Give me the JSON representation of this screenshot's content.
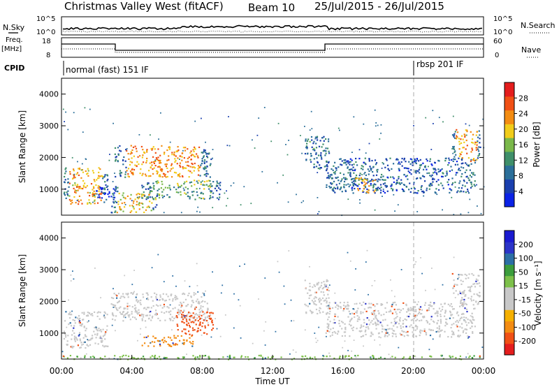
{
  "header": {
    "station": "Christmas Valley West (fitACF)",
    "beam": "Beam 10",
    "dates": "25/Jul/2015 - 26/Jul/2015"
  },
  "strip_labels": {
    "nsky": "N.Sky",
    "nsearch": "N.Search",
    "freq": "Freq.",
    "freq_unit": "[MHz]",
    "nave": "Nave",
    "cpid": "CPID",
    "nsky_ticks": [
      "10^5",
      "10^0"
    ],
    "nsearch_ticks": [
      "10^5",
      "10^0"
    ],
    "freq_ticks": [
      "18",
      "8"
    ],
    "nave_ticks": [
      "60",
      "0"
    ],
    "cpid_mode1": "normal (fast) 151 IF",
    "cpid_mode2": "rbsp 201 IF"
  },
  "colors": {
    "power": [
      "#0a22e6",
      "#1a3fae",
      "#2b6f9a",
      "#3f8f6a",
      "#7ab84a",
      "#f1cc1a",
      "#f38c12",
      "#f05015",
      "#e41d1d"
    ],
    "velocity": [
      "#e41d1d",
      "#f05015",
      "#f38c12",
      "#f5b000",
      "#c8c8c8",
      "#c8c8c8",
      "#7dc04a",
      "#3c9d3c",
      "#2c6fa5",
      "#2b34c8",
      "#1a1ad0"
    ]
  },
  "chart_data": [
    {
      "type": "heatmap",
      "name": "power-panel",
      "xlabel": "Time UT",
      "ylabel": "Slant Range [km]",
      "xlim": [
        0,
        24
      ],
      "ylim": [
        180,
        4500
      ],
      "yticks": [
        "1000",
        "2000",
        "3000",
        "4000"
      ],
      "xticks": [
        "00:00",
        "04:00",
        "08:00",
        "12:00",
        "16:00",
        "20:00",
        "00:00"
      ],
      "colorbar_label": "Power [dB]",
      "colorbar_ticks": [
        "4",
        "8",
        "12",
        "16",
        "20",
        "24",
        "28"
      ],
      "regions": [
        {
          "t0": 0.1,
          "t1": 2.6,
          "r0": 550,
          "r1": 1700,
          "level": 26
        },
        {
          "t0": 1.8,
          "t1": 3.2,
          "r0": 700,
          "r1": 1100,
          "level": 6
        },
        {
          "t0": 2.8,
          "t1": 5.5,
          "r0": 280,
          "r1": 900,
          "level": 24
        },
        {
          "t0": 3.0,
          "t1": 8.5,
          "r0": 1400,
          "r1": 2400,
          "level": 27
        },
        {
          "t0": 4.5,
          "t1": 9.0,
          "r0": 700,
          "r1": 1300,
          "level": 18
        },
        {
          "t0": 13.8,
          "t1": 15.2,
          "r0": 1600,
          "r1": 2700,
          "level": 14
        },
        {
          "t0": 15.0,
          "t1": 23.5,
          "r0": 900,
          "r1": 2000,
          "level": 12
        },
        {
          "t0": 16.5,
          "t1": 18.0,
          "r0": 900,
          "r1": 1400,
          "level": 24
        },
        {
          "t0": 22.2,
          "t1": 23.8,
          "r0": 1900,
          "r1": 2900,
          "level": 27
        }
      ]
    },
    {
      "type": "heatmap",
      "name": "velocity-panel",
      "xlabel": "Time UT",
      "ylabel": "Slant Range [km]",
      "xlim": [
        0,
        24
      ],
      "ylim": [
        180,
        4500
      ],
      "yticks": [
        "1000",
        "2000",
        "3000",
        "4000"
      ],
      "xticks": [
        "00:00",
        "04:00",
        "08:00",
        "12:00",
        "16:00",
        "20:00",
        "00:00"
      ],
      "colorbar_label": "Velocity [m s⁻¹]",
      "colorbar_ticks": [
        "200",
        "100",
        "50",
        "15",
        "-15",
        "-50",
        "-100",
        "-200"
      ],
      "regions": [
        {
          "t0": 0.1,
          "t1": 2.6,
          "r0": 550,
          "r1": 1700,
          "level": 0
        },
        {
          "t0": 2.8,
          "t1": 8.5,
          "r0": 1400,
          "r1": 2300,
          "level": 0
        },
        {
          "t0": 4.5,
          "t1": 7.5,
          "r0": 600,
          "r1": 950,
          "level": -70
        },
        {
          "t0": 6.5,
          "t1": 8.6,
          "r0": 950,
          "r1": 1700,
          "level": -150
        },
        {
          "t0": 13.8,
          "t1": 15.2,
          "r0": 1600,
          "r1": 2700,
          "level": 0
        },
        {
          "t0": 15.0,
          "t1": 23.5,
          "r0": 900,
          "r1": 2000,
          "level": 0
        },
        {
          "t0": 22.2,
          "t1": 23.8,
          "r0": 1900,
          "r1": 2900,
          "level": 0
        },
        {
          "t0": 0.0,
          "t1": 24.0,
          "r0": 190,
          "r1": 320,
          "level": 40
        }
      ]
    }
  ]
}
